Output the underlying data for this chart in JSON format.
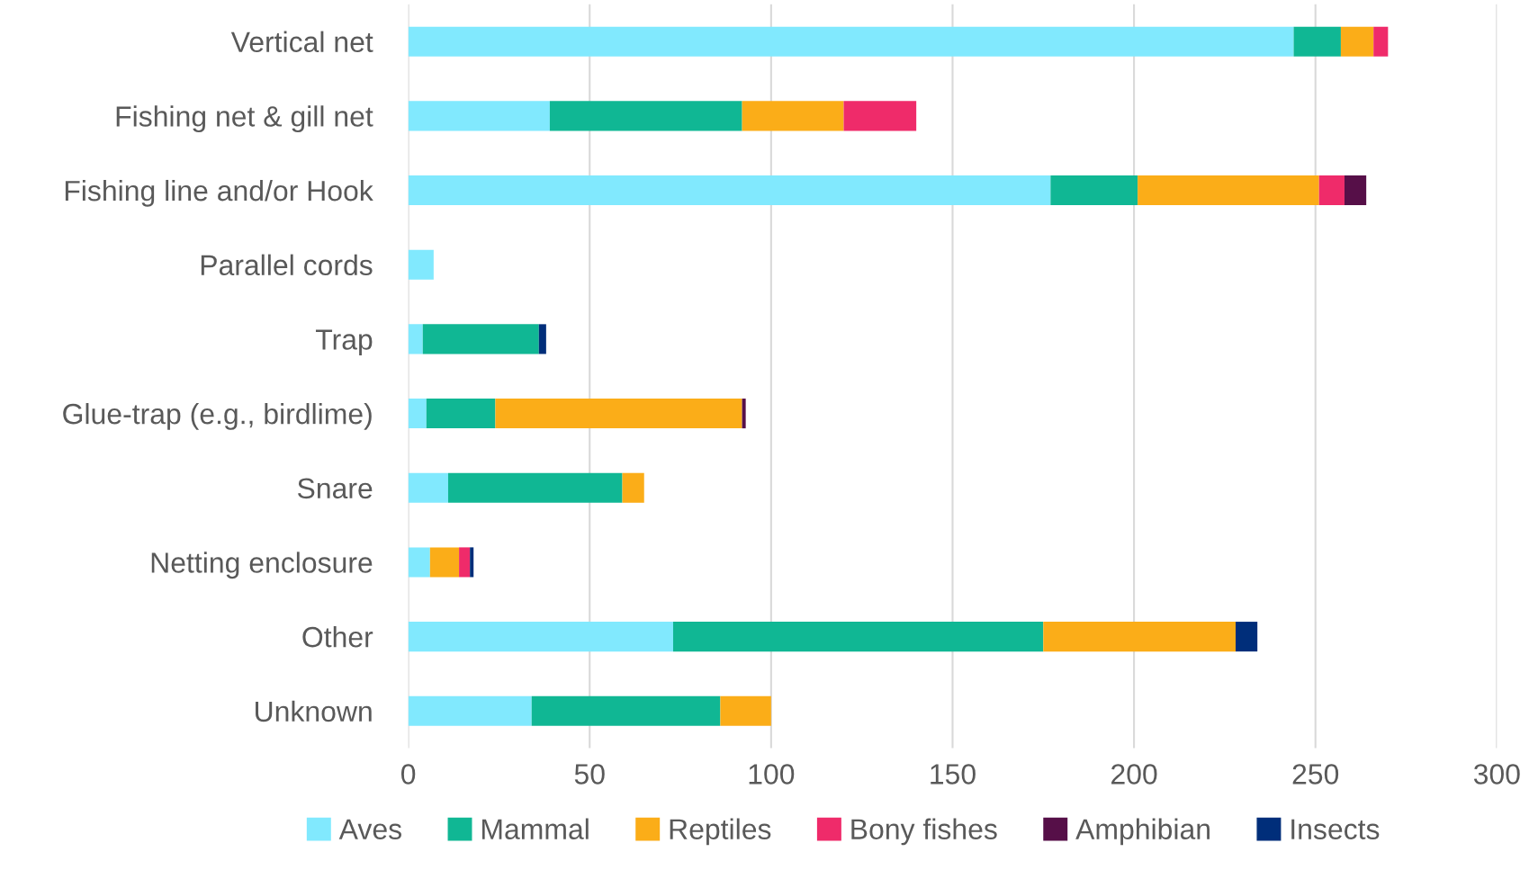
{
  "chart_data": {
    "type": "bar",
    "orientation": "horizontal",
    "stacked": true,
    "categories": [
      "Vertical net",
      "Fishing net & gill net",
      "Fishing line and/or Hook",
      "Parallel cords",
      "Trap",
      "Glue-trap (e.g., birdlime)",
      "Snare",
      "Netting enclosure",
      "Other",
      "Unknown"
    ],
    "series": [
      {
        "name": "Aves",
        "color": "#81e9fe",
        "values": [
          244,
          39,
          177,
          7,
          4,
          5,
          11,
          6,
          73,
          34
        ]
      },
      {
        "name": "Mammal",
        "color": "#10b794",
        "values": [
          13,
          53,
          24,
          0,
          32,
          19,
          48,
          0,
          102,
          52
        ]
      },
      {
        "name": "Reptiles",
        "color": "#fbad18",
        "values": [
          9,
          28,
          50,
          0,
          0,
          68,
          6,
          8,
          53,
          14
        ]
      },
      {
        "name": "Bony fishes",
        "color": "#ef2b6a",
        "values": [
          4,
          20,
          7,
          0,
          0,
          0,
          0,
          3,
          0,
          0
        ]
      },
      {
        "name": "Amphibian",
        "color": "#560f48",
        "values": [
          0,
          0,
          6,
          0,
          0,
          1,
          0,
          0,
          0,
          0
        ]
      },
      {
        "name": "Insects",
        "color": "#002e7a",
        "values": [
          0,
          0,
          0,
          0,
          2,
          0,
          0,
          1,
          6,
          0
        ]
      }
    ],
    "xlim": [
      0,
      300
    ],
    "xticks": [
      0,
      50,
      100,
      150,
      200,
      250,
      300
    ],
    "grid": "x",
    "legend": "bottom"
  }
}
